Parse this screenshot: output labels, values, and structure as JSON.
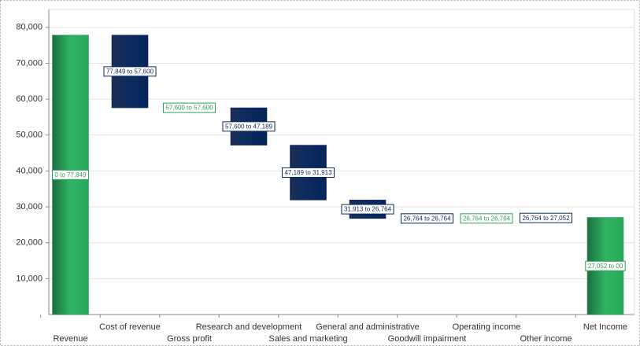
{
  "chart_data": {
    "type": "waterfall",
    "categories": [
      "Revenue",
      "Cost of revenue",
      "Gross profit",
      "Research and development",
      "Sales and marketing",
      "General and administrative",
      "Goodwill impairment",
      "Operating income",
      "Other income",
      "Net Income"
    ],
    "values": [
      77849,
      -20249,
      0,
      -10411,
      -15276,
      -5149,
      0,
      0,
      288,
      27052
    ],
    "value_labels": [
      "0 to 77,849",
      "77,849 to 57,600",
      "57,600 to 57,600",
      "57,600 to 47,189",
      "47,189 to 31,913",
      "31,913 to 26,764",
      "26,764 to 26,764",
      "26,764 to 26,764",
      "26,764 to 27,052",
      "27,052 to 00"
    ],
    "totals": [
      true,
      false,
      false,
      false,
      false,
      false,
      false,
      false,
      false,
      true
    ],
    "colors": [
      "#2e9e5a",
      "#0d2a5c",
      "#2e9e5a",
      "#0d2a5c",
      "#0d2a5c",
      "#0d2a5c",
      "#0d2a5c",
      "#2e9e5a",
      "#0d2a5c",
      "#2e9e5a"
    ],
    "ylim": [
      0,
      85000
    ],
    "yticks": [
      {
        "value": 10000,
        "label": "10,000"
      },
      {
        "value": 20000,
        "label": "20,000"
      },
      {
        "value": 30000,
        "label": "30,000"
      },
      {
        "value": 40000,
        "label": "40,000"
      },
      {
        "value": 50000,
        "label": "50,000"
      },
      {
        "value": 60000,
        "label": "60,000"
      },
      {
        "value": 70000,
        "label": "70,000"
      },
      {
        "value": 80000,
        "label": "80,000"
      }
    ],
    "grid": true
  }
}
